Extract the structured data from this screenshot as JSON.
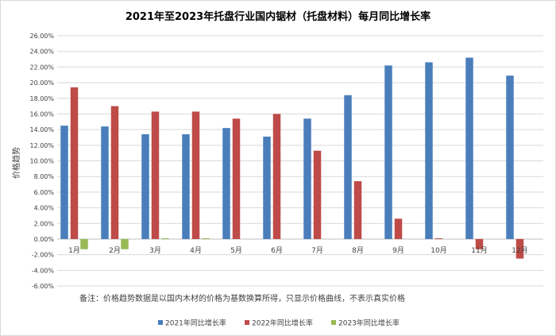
{
  "chart_data": {
    "type": "bar",
    "title": "2021年至2023年托盘行业国内锯材（托盘材料）每月同比增长率",
    "ylabel": "价格趋势",
    "xlabel": "",
    "note": "备注：价格趋势数据是以国内木材的价格为基数换算所得，只显示价格曲线，不表示真实价格",
    "categories": [
      "1月",
      "2月",
      "3月",
      "4月",
      "5月",
      "6月",
      "7月",
      "8月",
      "9月",
      "10月",
      "11月",
      "12月"
    ],
    "ylim": [
      -6,
      26
    ],
    "ytick_step": 2,
    "ytick_labels": [
      "-6.00%",
      "-4.00%",
      "-2.00%",
      "0.00%",
      "2.00%",
      "4.00%",
      "6.00%",
      "8.00%",
      "10.00%",
      "12.00%",
      "14.00%",
      "16.00%",
      "18.00%",
      "20.00%",
      "22.00%",
      "24.00%",
      "26.00%"
    ],
    "grid": true,
    "legend_position": "bottom",
    "series": [
      {
        "name": "2021年同比增长率",
        "color": "#4a7ebb",
        "values": [
          14.5,
          14.4,
          13.4,
          13.4,
          14.2,
          13.1,
          15.4,
          18.4,
          22.2,
          22.6,
          23.2,
          20.9
        ]
      },
      {
        "name": "2022年同比增长率",
        "color": "#be4b48",
        "values": [
          19.4,
          17.0,
          16.3,
          16.3,
          15.4,
          16.0,
          11.3,
          7.4,
          2.6,
          0.1,
          -1.3,
          -2.5
        ]
      },
      {
        "name": "2023年同比增长率",
        "color": "#98b954",
        "values": [
          -1.3,
          -1.3,
          0.1,
          0.1,
          null,
          null,
          null,
          null,
          null,
          null,
          null,
          null
        ]
      }
    ]
  }
}
